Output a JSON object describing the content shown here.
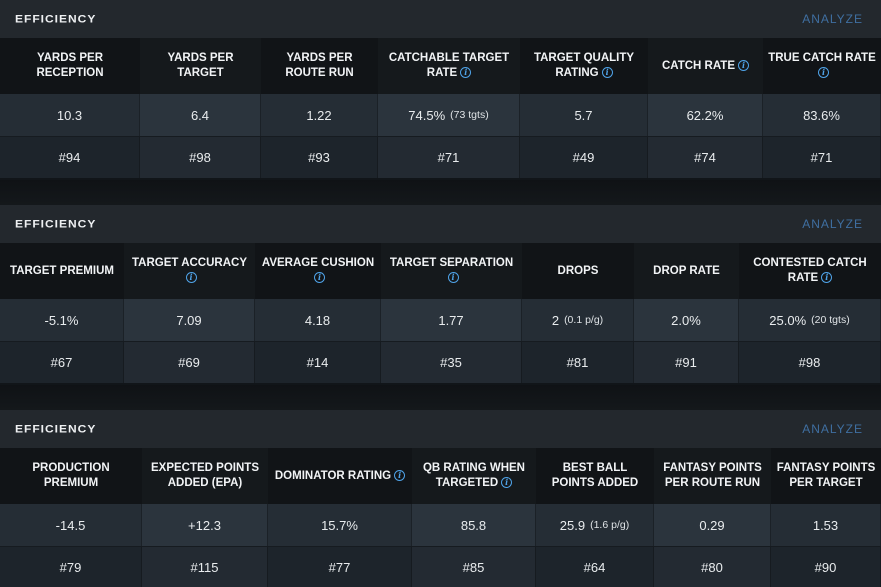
{
  "panels": [
    {
      "title": "EFFICIENCY",
      "action": "ANALYZE",
      "columns": [
        {
          "label": "YARDS PER RECEPTION",
          "info": false,
          "value": "10.3",
          "sub": "",
          "rank": "#94"
        },
        {
          "label": "YARDS PER TARGET",
          "info": false,
          "value": "6.4",
          "sub": "",
          "rank": "#98"
        },
        {
          "label": "YARDS PER ROUTE RUN",
          "info": false,
          "value": "1.22",
          "sub": "",
          "rank": "#93"
        },
        {
          "label": "CATCHABLE TARGET RATE",
          "info": true,
          "value": "74.5%",
          "sub": "(73 tgts)",
          "rank": "#71"
        },
        {
          "label": "TARGET QUALITY RATING",
          "info": true,
          "value": "5.7",
          "sub": "",
          "rank": "#49"
        },
        {
          "label": "CATCH RATE",
          "info": true,
          "value": "62.2%",
          "sub": "",
          "rank": "#74"
        },
        {
          "label": "TRUE CATCH RATE",
          "info": true,
          "value": "83.6%",
          "sub": "",
          "rank": "#71"
        }
      ]
    },
    {
      "title": "EFFICIENCY",
      "action": "ANALYZE",
      "columns": [
        {
          "label": "TARGET PREMIUM",
          "info": false,
          "value": "-5.1%",
          "sub": "",
          "rank": "#67"
        },
        {
          "label": "TARGET ACCURACY",
          "info": true,
          "value": "7.09",
          "sub": "",
          "rank": "#69"
        },
        {
          "label": "AVERAGE CUSHION",
          "info": true,
          "value": "4.18",
          "sub": "",
          "rank": "#14"
        },
        {
          "label": "TARGET SEPARATION",
          "info": true,
          "value": "1.77",
          "sub": "",
          "rank": "#35"
        },
        {
          "label": "DROPS",
          "info": false,
          "value": "2",
          "sub": "(0.1 p/g)",
          "rank": "#81"
        },
        {
          "label": "DROP RATE",
          "info": false,
          "value": "2.0%",
          "sub": "",
          "rank": "#91"
        },
        {
          "label": "CONTESTED CATCH RATE",
          "info": true,
          "value": "25.0%",
          "sub": "(20 tgts)",
          "rank": "#98"
        }
      ]
    },
    {
      "title": "EFFICIENCY",
      "action": "ANALYZE",
      "columns": [
        {
          "label": "PRODUCTION PREMIUM",
          "info": false,
          "value": "-14.5",
          "sub": "",
          "rank": "#79"
        },
        {
          "label": "EXPECTED POINTS ADDED (EPA)",
          "info": false,
          "value": "+12.3",
          "sub": "",
          "rank": "#115"
        },
        {
          "label": "DOMINATOR RATING",
          "info": true,
          "value": "15.7%",
          "sub": "",
          "rank": "#77"
        },
        {
          "label": "QB RATING WHEN TARGETED",
          "info": true,
          "value": "85.8",
          "sub": "",
          "rank": "#85"
        },
        {
          "label": "BEST BALL POINTS ADDED",
          "info": false,
          "value": "25.9",
          "sub": "(1.6 p/g)",
          "rank": "#64"
        },
        {
          "label": "FANTASY POINTS PER ROUTE RUN",
          "info": false,
          "value": "0.29",
          "sub": "",
          "rank": "#80"
        },
        {
          "label": "FANTASY POINTS PER TARGET",
          "info": false,
          "value": "1.53",
          "sub": "",
          "rank": "#90"
        }
      ]
    }
  ],
  "icons": {
    "info": "info-icon"
  },
  "colors": {
    "accent": "#4fa3e8",
    "analyze": "#3f6fa1",
    "header_bg": "#23282d"
  }
}
